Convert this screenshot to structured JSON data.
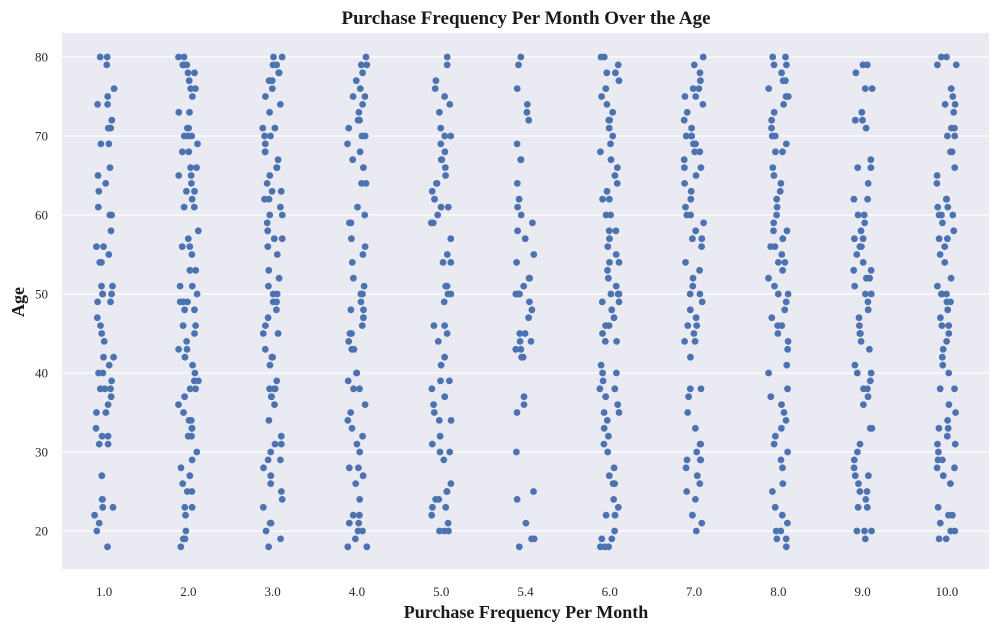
{
  "chart_data": {
    "type": "scatter",
    "subtype": "strip",
    "title": "Purchase Frequency Per Month Over the Age",
    "xlabel": "Purchase Frequency Per Month",
    "ylabel": "Age",
    "categories": [
      "1.0",
      "2.0",
      "3.0",
      "4.0",
      "5.0",
      "5.4",
      "6.0",
      "7.0",
      "8.0",
      "9.0",
      "10.0"
    ],
    "yticks": [
      20,
      30,
      40,
      50,
      60,
      70,
      80
    ],
    "ylim": [
      15,
      83
    ],
    "grid": true,
    "point_color": "#4c72b0",
    "background_color": "#eaeaf2",
    "grid_color": "#ffffff",
    "series": [
      {
        "category": "1.0",
        "values": [
          80,
          80,
          79,
          76,
          75,
          74,
          74,
          72,
          71,
          71,
          69,
          69,
          66,
          65,
          64,
          63,
          61,
          60,
          60,
          58,
          56,
          56,
          55,
          54,
          54,
          51,
          51,
          50,
          50,
          50,
          49,
          49,
          47,
          46,
          45,
          44,
          42,
          42,
          41,
          40,
          40,
          39,
          38,
          38,
          38,
          37,
          36,
          35,
          35,
          33,
          32,
          32,
          31,
          31,
          27,
          24,
          24,
          23,
          23,
          22,
          21,
          20,
          18
        ]
      },
      {
        "category": "2.0",
        "values": [
          80,
          80,
          79,
          79,
          79,
          78,
          78,
          77,
          76,
          76,
          75,
          73,
          73,
          71,
          71,
          70,
          70,
          70,
          69,
          68,
          68,
          66,
          66,
          65,
          65,
          64,
          63,
          63,
          62,
          61,
          61,
          58,
          57,
          56,
          56,
          55,
          53,
          53,
          51,
          51,
          50,
          49,
          49,
          49,
          48,
          48,
          46,
          46,
          45,
          44,
          43,
          43,
          42,
          41,
          40,
          39,
          39,
          38,
          38,
          37,
          36,
          35,
          34,
          34,
          33,
          33,
          32,
          32,
          30,
          29,
          28,
          27,
          26,
          25,
          25,
          23,
          23,
          22,
          20,
          19,
          19,
          18
        ]
      },
      {
        "category": "3.0",
        "values": [
          80,
          80,
          79,
          79,
          78,
          78,
          77,
          77,
          76,
          75,
          74,
          73,
          71,
          71,
          70,
          70,
          69,
          68,
          68,
          67,
          66,
          66,
          65,
          64,
          63,
          63,
          62,
          62,
          61,
          60,
          60,
          59,
          58,
          57,
          57,
          56,
          55,
          53,
          52,
          51,
          50,
          50,
          49,
          49,
          48,
          47,
          46,
          45,
          45,
          43,
          42,
          42,
          41,
          39,
          38,
          38,
          38,
          37,
          37,
          36,
          34,
          32,
          31,
          31,
          30,
          29,
          29,
          28,
          27,
          26,
          25,
          24,
          23,
          21,
          21,
          20,
          19,
          18
        ]
      },
      {
        "category": "4.0",
        "values": [
          80,
          79,
          79,
          78,
          77,
          76,
          75,
          75,
          74,
          73,
          72,
          72,
          71,
          70,
          70,
          69,
          68,
          67,
          66,
          64,
          64,
          61,
          60,
          59,
          59,
          57,
          56,
          55,
          54,
          52,
          51,
          50,
          50,
          49,
          48,
          48,
          47,
          46,
          45,
          45,
          44,
          43,
          43,
          40,
          40,
          39,
          38,
          38,
          36,
          35,
          34,
          33,
          32,
          31,
          30,
          28,
          28,
          27,
          26,
          24,
          22,
          22,
          21,
          21,
          20,
          20,
          19,
          18,
          18
        ]
      },
      {
        "category": "5.0",
        "values": [
          80,
          79,
          77,
          76,
          75,
          74,
          73,
          71,
          70,
          70,
          69,
          68,
          67,
          67,
          66,
          65,
          64,
          64,
          63,
          62,
          61,
          61,
          60,
          59,
          59,
          57,
          55,
          54,
          54,
          51,
          51,
          50,
          50,
          49,
          46,
          46,
          45,
          44,
          42,
          41,
          39,
          39,
          38,
          37,
          36,
          35,
          34,
          34,
          32,
          31,
          30,
          30,
          29,
          26,
          25,
          25,
          24,
          24,
          23,
          23,
          22,
          21,
          20,
          20,
          20
        ]
      },
      {
        "category": "5.4",
        "values": [
          80,
          79,
          76,
          74,
          73,
          72,
          69,
          67,
          67,
          64,
          62,
          61,
          60,
          59,
          58,
          57,
          55,
          54,
          52,
          52,
          51,
          50,
          50,
          50,
          49,
          48,
          47,
          45,
          45,
          44,
          44,
          43,
          43,
          42,
          42,
          37,
          36,
          35,
          30,
          25,
          24,
          21,
          19,
          19,
          18
        ]
      },
      {
        "category": "6.0",
        "values": [
          80,
          80,
          79,
          78,
          78,
          77,
          76,
          75,
          74,
          73,
          72,
          72,
          71,
          70,
          69,
          68,
          67,
          66,
          65,
          64,
          63,
          62,
          62,
          60,
          60,
          58,
          58,
          57,
          56,
          55,
          54,
          54,
          53,
          52,
          51,
          50,
          50,
          50,
          49,
          49,
          48,
          47,
          46,
          46,
          45,
          44,
          44,
          41,
          40,
          40,
          39,
          38,
          38,
          37,
          36,
          35,
          35,
          34,
          33,
          32,
          31,
          30,
          28,
          27,
          26,
          26,
          24,
          23,
          22,
          22,
          20,
          19,
          19,
          18,
          18,
          18
        ]
      },
      {
        "category": "7.0",
        "values": [
          80,
          79,
          78,
          77,
          76,
          76,
          75,
          75,
          74,
          73,
          72,
          71,
          70,
          70,
          70,
          69,
          69,
          68,
          68,
          67,
          66,
          66,
          65,
          64,
          63,
          62,
          61,
          60,
          60,
          59,
          58,
          57,
          57,
          56,
          54,
          53,
          52,
          51,
          50,
          50,
          49,
          48,
          47,
          46,
          46,
          45,
          44,
          44,
          42,
          38,
          38,
          37,
          35,
          33,
          31,
          31,
          30,
          29,
          29,
          29,
          28,
          27,
          26,
          25,
          24,
          22,
          21,
          20
        ]
      },
      {
        "category": "8.0",
        "values": [
          80,
          80,
          79,
          79,
          78,
          77,
          77,
          76,
          75,
          75,
          74,
          73,
          72,
          71,
          70,
          70,
          69,
          68,
          68,
          66,
          65,
          64,
          63,
          62,
          61,
          60,
          59,
          58,
          58,
          57,
          56,
          56,
          55,
          54,
          54,
          53,
          52,
          51,
          50,
          50,
          49,
          48,
          47,
          46,
          46,
          45,
          44,
          43,
          41,
          40,
          38,
          37,
          36,
          35,
          34,
          33,
          32,
          31,
          30,
          29,
          28,
          26,
          25,
          23,
          22,
          21,
          20,
          20,
          19,
          19,
          18
        ]
      },
      {
        "category": "9.0",
        "values": [
          79,
          79,
          78,
          76,
          76,
          73,
          72,
          72,
          71,
          67,
          66,
          66,
          64,
          62,
          62,
          60,
          60,
          59,
          58,
          57,
          57,
          56,
          56,
          55,
          54,
          53,
          53,
          52,
          52,
          51,
          50,
          50,
          49,
          48,
          47,
          46,
          45,
          45,
          44,
          43,
          41,
          40,
          40,
          39,
          38,
          38,
          37,
          36,
          33,
          33,
          31,
          30,
          29,
          28,
          27,
          27,
          26,
          25,
          25,
          24,
          23,
          23,
          20,
          20,
          20,
          19
        ]
      },
      {
        "category": "10.0",
        "values": [
          80,
          80,
          79,
          79,
          76,
          75,
          74,
          74,
          73,
          71,
          71,
          70,
          70,
          68,
          68,
          66,
          65,
          64,
          62,
          62,
          61,
          61,
          60,
          60,
          60,
          59,
          58,
          57,
          57,
          56,
          55,
          54,
          52,
          51,
          50,
          50,
          50,
          49,
          49,
          48,
          47,
          46,
          46,
          45,
          44,
          43,
          42,
          41,
          40,
          38,
          38,
          36,
          35,
          34,
          33,
          33,
          32,
          31,
          31,
          30,
          29,
          29,
          28,
          28,
          27,
          26,
          23,
          22,
          22,
          21,
          20,
          20,
          19,
          19
        ]
      }
    ]
  }
}
